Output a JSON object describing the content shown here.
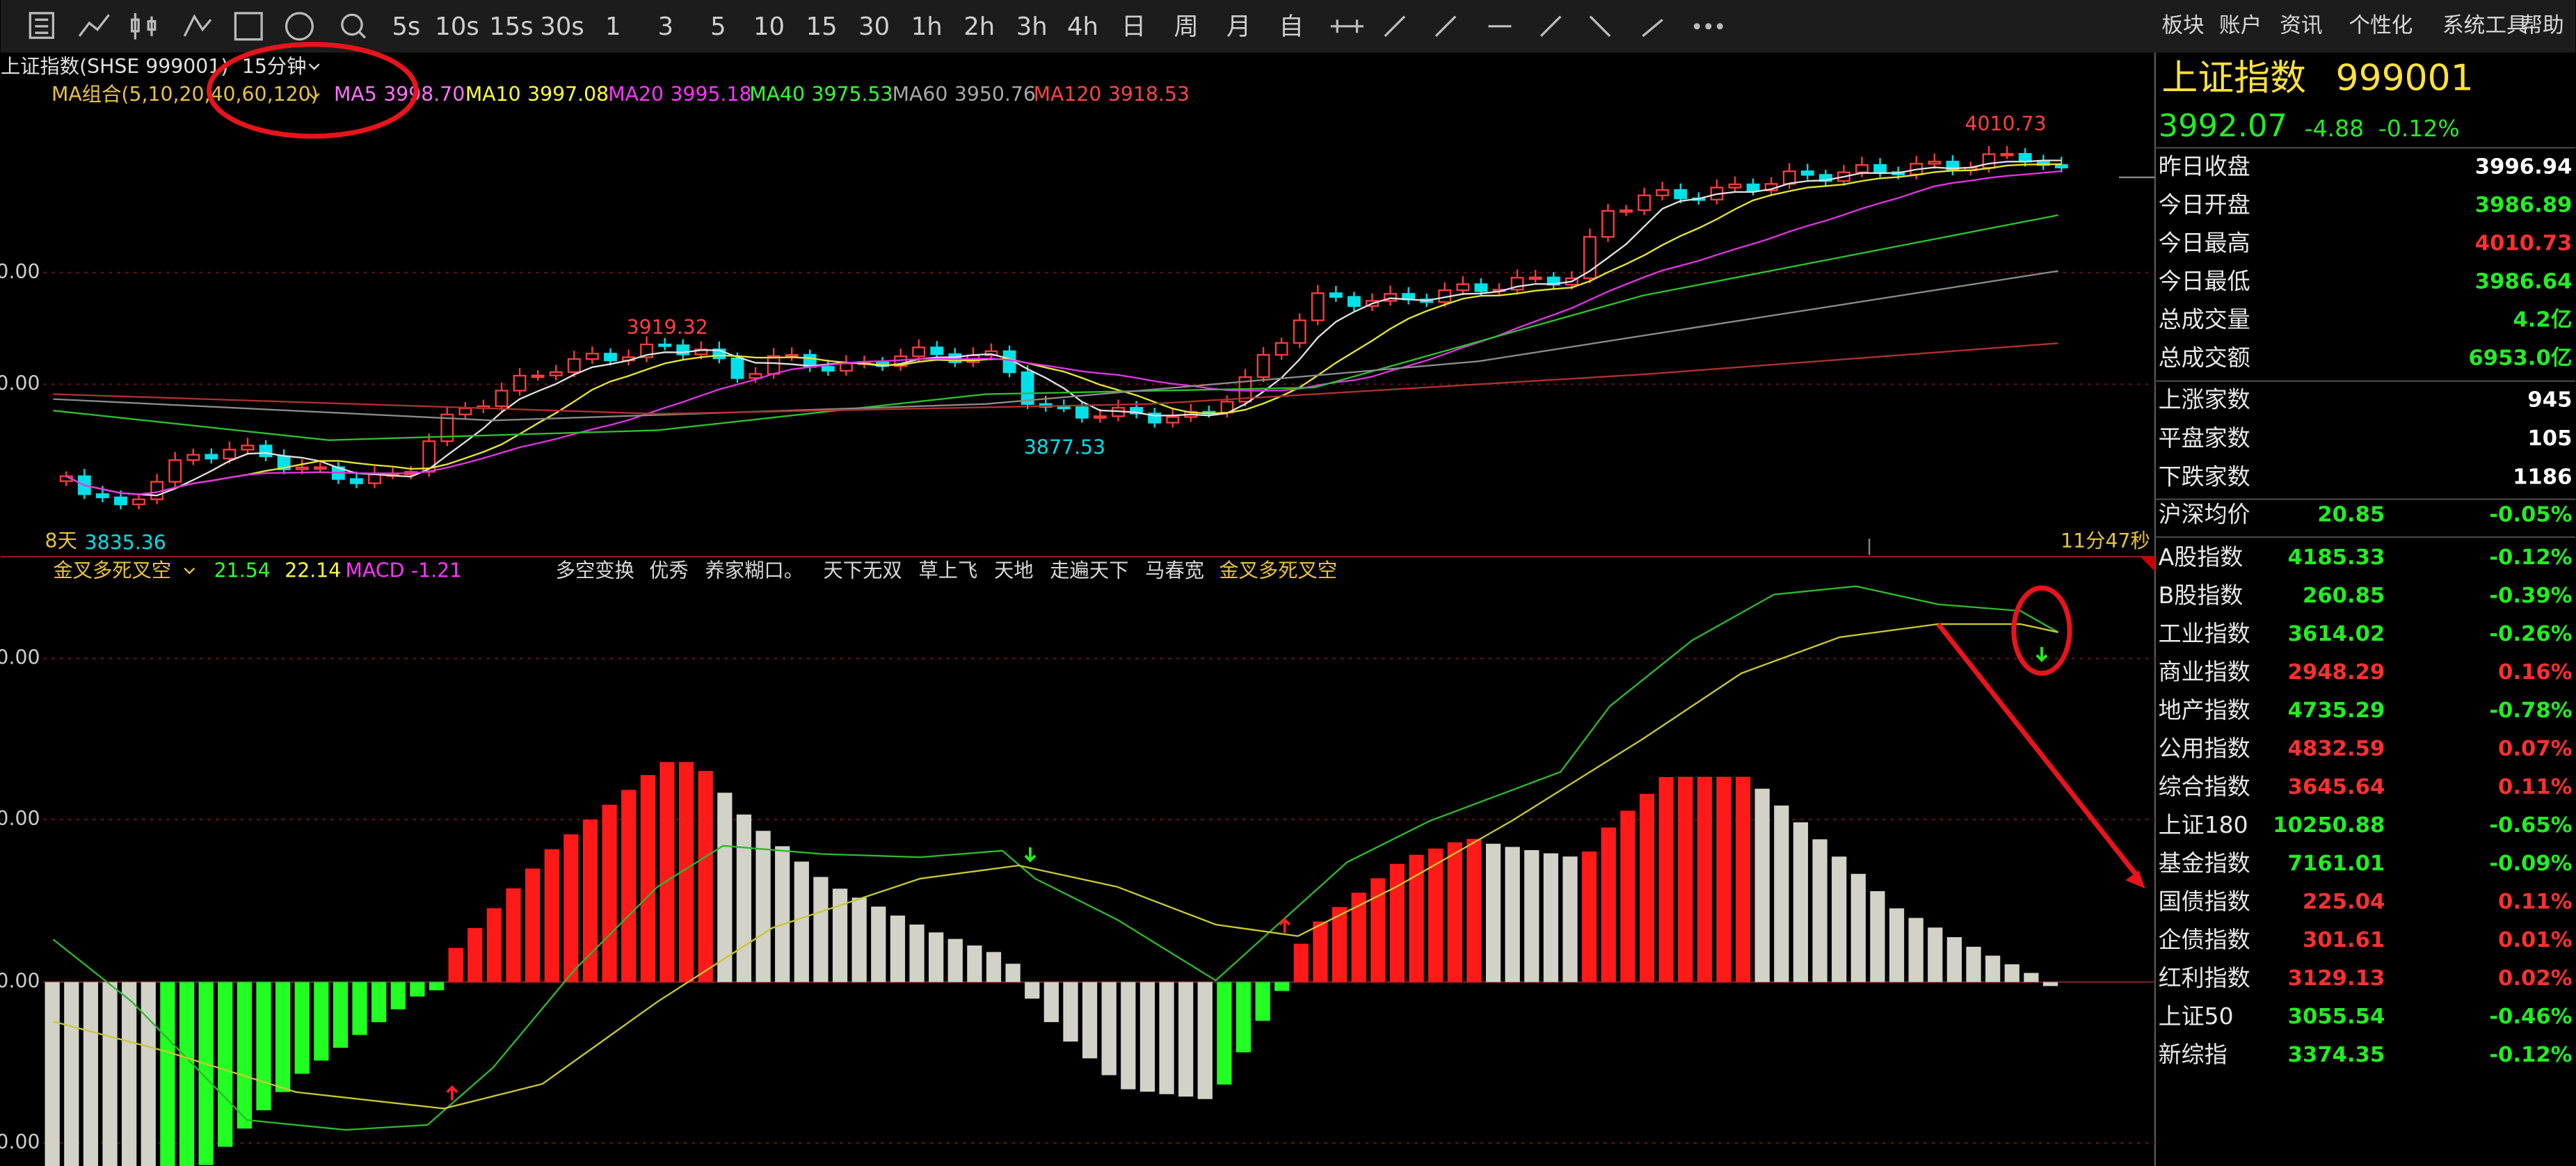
{
  "toolbar": {
    "periods": [
      "5s",
      "10s",
      "15s",
      "30s",
      "1",
      "3",
      "5",
      "10",
      "15",
      "30",
      "1h",
      "2h",
      "3h",
      "4h",
      "日",
      "周",
      "月",
      "自"
    ],
    "menus": [
      "板块",
      "账户",
      "资讯",
      "个性化",
      "系统工具",
      "帮助"
    ]
  },
  "chart_header": {
    "symbol": "上证指数(SHSE  999001)",
    "period": "15分钟",
    "ma_group": "MA组合(5,10,20,40,60,120)",
    "ma_items": [
      {
        "name": "MA5",
        "value": "3998.70",
        "color": "#ff70ff"
      },
      {
        "name": "MA10",
        "value": "3997.08",
        "color": "#ffff33"
      },
      {
        "name": "MA20",
        "value": "3995.18",
        "color": "#ff33ff"
      },
      {
        "name": "MA40",
        "value": "3975.53",
        "color": "#33ff33"
      },
      {
        "name": "MA60",
        "value": "3950.76",
        "color": "#a8a8a8"
      },
      {
        "name": "MA120",
        "value": "3918.53",
        "color": "#ff4444"
      }
    ]
  },
  "price_annotations": {
    "high": "4010.73",
    "peak": "3919.32",
    "trough": "3877.53",
    "low": "3835.36",
    "days": "8天",
    "countdown": "11分47秒"
  },
  "axis_labels": {
    "top": [
      "0.00",
      "0.00"
    ],
    "bottom": [
      "0.00",
      "0.00",
      "0.00",
      "0.00"
    ]
  },
  "indicator_header": {
    "name": "金叉多死叉空",
    "value_a": "21.54",
    "value_b": "22.14",
    "macd_name": "MACD",
    "macd_value": "-1.21",
    "strategies": [
      "多空变换",
      "优秀",
      "养家糊口。",
      "天下无双",
      "草上飞",
      "天地",
      "走遍天下",
      "马春宽",
      "金叉多死叉空"
    ]
  },
  "quote": {
    "name": "上证指数",
    "code": "999001",
    "price": "3992.07",
    "change": "-4.88",
    "change_pct": "-0.12%",
    "stats": [
      {
        "label": "昨日收盘",
        "value": "3996.94",
        "color": "#ffffff"
      },
      {
        "label": "今日开盘",
        "value": "3986.89",
        "color": "#22ee22"
      },
      {
        "label": "今日最高",
        "value": "4010.73",
        "color": "#ff3030"
      },
      {
        "label": "今日最低",
        "value": "3986.64",
        "color": "#22ee22"
      },
      {
        "label": "总成交量",
        "value": "4.2亿",
        "color": "#22ee22"
      },
      {
        "label": "总成交额",
        "value": "6953.0亿",
        "color": "#22ee22"
      }
    ],
    "breadth": [
      {
        "label": "上涨家数",
        "value": "945",
        "color": "#ffffff"
      },
      {
        "label": "平盘家数",
        "value": "105",
        "color": "#ffffff"
      },
      {
        "label": "下跌家数",
        "value": "1186",
        "color": "#ffffff"
      }
    ],
    "indexes": [
      {
        "name": "沪深均价",
        "value": "20.85",
        "pct": "-0.05%"
      },
      {
        "name": "A股指数",
        "value": "4185.33",
        "pct": "-0.12%"
      },
      {
        "name": "B股指数",
        "value": "260.85",
        "pct": "-0.39%"
      },
      {
        "name": "工业指数",
        "value": "3614.02",
        "pct": "-0.26%"
      },
      {
        "name": "商业指数",
        "value": "2948.29",
        "pct": "0.16%"
      },
      {
        "name": "地产指数",
        "value": "4735.29",
        "pct": "-0.78%"
      },
      {
        "name": "公用指数",
        "value": "4832.59",
        "pct": "0.07%"
      },
      {
        "name": "综合指数",
        "value": "3645.64",
        "pct": "0.11%"
      },
      {
        "name": "上证180",
        "value": "10250.88",
        "pct": "-0.65%"
      },
      {
        "name": "基金指数",
        "value": "7161.01",
        "pct": "-0.09%"
      },
      {
        "name": "国债指数",
        "value": "225.04",
        "pct": "0.11%"
      },
      {
        "name": "企债指数",
        "value": "301.61",
        "pct": "0.01%"
      },
      {
        "name": "红利指数",
        "value": "3129.13",
        "pct": "0.02%"
      },
      {
        "name": "上证50",
        "value": "3055.54",
        "pct": "-0.46%"
      },
      {
        "name": "新综指",
        "value": "3374.35",
        "pct": "-0.12%"
      }
    ]
  }
}
